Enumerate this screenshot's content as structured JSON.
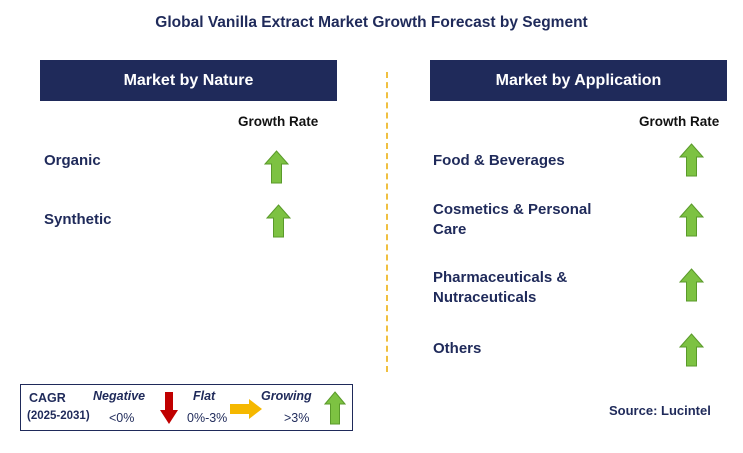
{
  "title": "Global Vanilla Extract Market Growth Forecast by Segment",
  "left_panel": {
    "header": "Market by Nature",
    "growth_label": "Growth Rate",
    "items": [
      {
        "label": "Organic",
        "trend": "growing"
      },
      {
        "label": "Synthetic",
        "trend": "growing"
      }
    ]
  },
  "right_panel": {
    "header": "Market by Application",
    "growth_label": "Growth Rate",
    "items": [
      {
        "label_line1": "Food & Beverages",
        "label_line2": "",
        "trend": "growing"
      },
      {
        "label_line1": "Cosmetics & Personal",
        "label_line2": "Care",
        "trend": "growing"
      },
      {
        "label_line1": "Pharmaceuticals &",
        "label_line2": "Nutraceuticals",
        "trend": "growing"
      },
      {
        "label_line1": "Others",
        "label_line2": "",
        "trend": "growing"
      }
    ]
  },
  "legend": {
    "cagr_label": "CAGR",
    "period": "(2025-2031)",
    "negative_label": "Negative",
    "negative_range": "<0%",
    "flat_label": "Flat",
    "flat_range": "0%-3%",
    "growing_label": "Growing",
    "growing_range": ">3%"
  },
  "source": "Source: Lucintel",
  "colors": {
    "navy": "#1f2a5a",
    "green_arrow": "#7dc242",
    "red_arrow": "#c00000",
    "orange_arrow": "#f5b800",
    "divider": "#f0c040"
  },
  "icons": [
    "green-up-arrow-icon",
    "red-down-arrow-icon",
    "orange-right-arrow-icon"
  ]
}
